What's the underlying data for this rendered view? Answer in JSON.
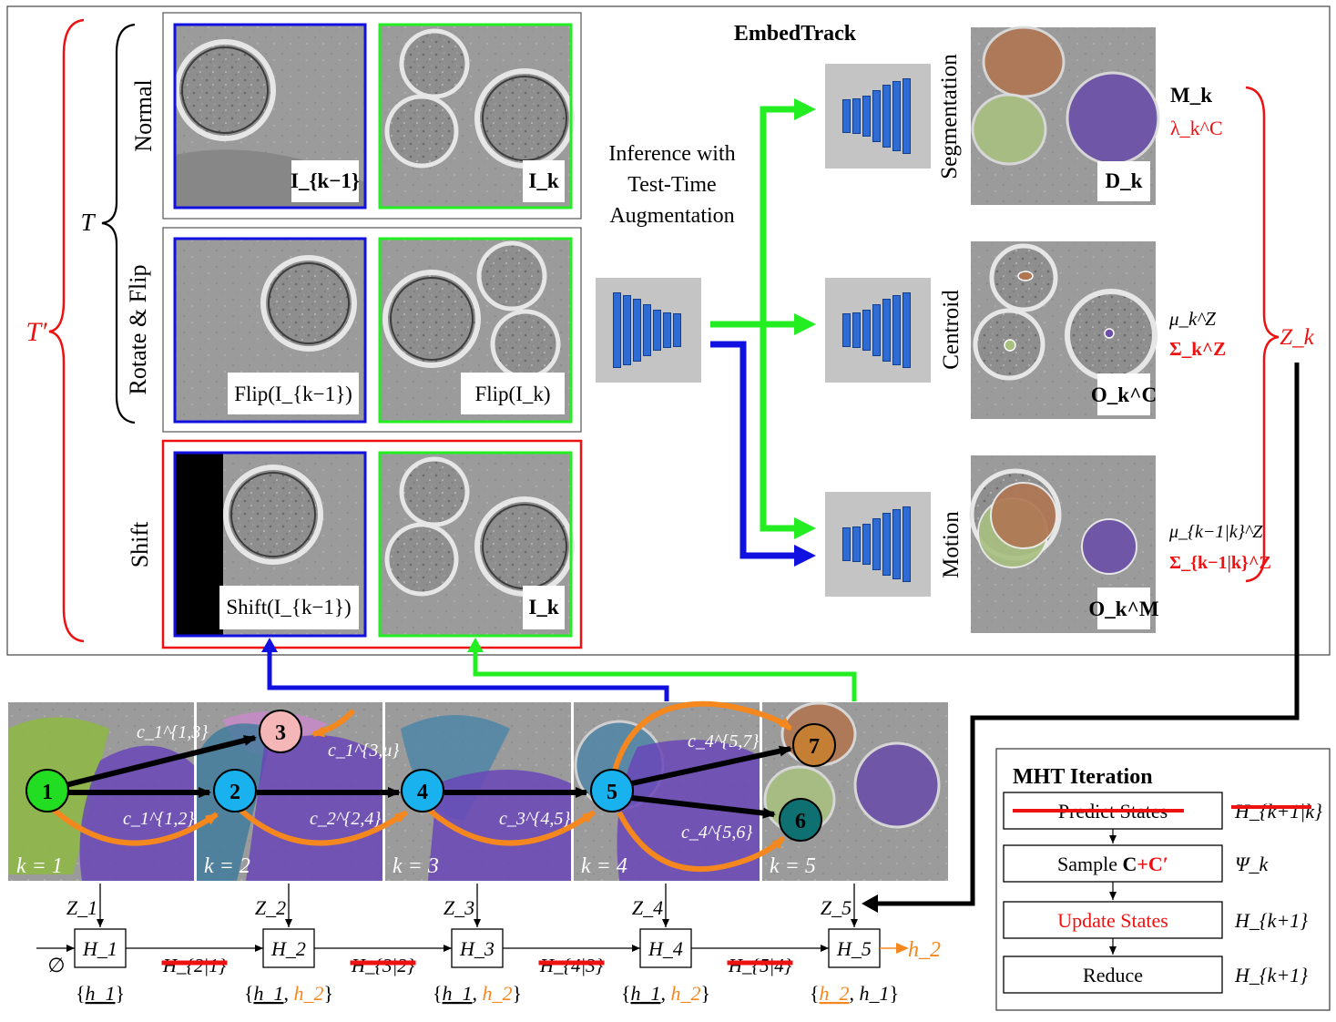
{
  "title": "EmbedTrack",
  "groups": {
    "normal": "Normal",
    "rotate_flip": "Rotate & Flip",
    "shift": "Shift",
    "tau": "T",
    "tau_prime": "T′"
  },
  "panels": {
    "normal_prev": "I_{k−1}",
    "normal_cur": "I_k",
    "flip_prev": "Flip(I_{k−1})",
    "flip_cur": "Flip(I_k)",
    "shift_prev": "Shift(I_{k−1})",
    "shift_cur": "I_k"
  },
  "inference": {
    "line1": "Inference with",
    "line2": "Test-Time",
    "line3": "Augmentation"
  },
  "heads": {
    "segmentation": "Segmentation",
    "centroid": "Centroid",
    "motion": "Motion"
  },
  "outputs": {
    "seg_img": "D_k",
    "cent_img": "O_k^C",
    "mot_img": "O_k^M",
    "seg_m": "M_k",
    "seg_lambda": "λ_k^C",
    "cent_mu": "μ_k^Z",
    "cent_sigma": "Σ_k^Z",
    "mot_mu": "μ_{k−1|k}^Z",
    "mot_sigma": "Σ_{k−1|k}^Z",
    "z_k": "Z_k"
  },
  "timeline": {
    "frames": [
      "k = 1",
      "k = 2",
      "k = 3",
      "k = 4",
      "k = 5"
    ],
    "nodes": [
      "1",
      "2",
      "3",
      "4",
      "5",
      "6",
      "7"
    ],
    "costs": [
      "c_1^{1,3}",
      "c_1^{1,2}",
      "c_1^{3,u}",
      "c_2^{2,4}",
      "c_3^{4,5}",
      "c_4^{5,7}",
      "c_4^{5,6}"
    ],
    "z": [
      "Z_1",
      "Z_2",
      "Z_3",
      "Z_4",
      "Z_5"
    ],
    "h": [
      "H_1",
      "H_2",
      "H_3",
      "H_4",
      "H_5"
    ],
    "h_pred": [
      "H_{2|1}",
      "H_{3|2}",
      "H_{4|3}",
      "H_{5|4}"
    ],
    "empty": "∅",
    "h2_out": "h_2",
    "sets": [
      [
        "h_1"
      ],
      [
        "h_1",
        "h_2"
      ],
      [
        "h_1",
        "h_2"
      ],
      [
        "h_1",
        "h_2"
      ],
      [
        "h_2",
        "h_1"
      ]
    ]
  },
  "mht": {
    "title": "MHT Iteration",
    "steps": [
      {
        "label": "Predict States",
        "symbol": "H_{k+1|k}"
      },
      {
        "label": "Sample C+C′",
        "symbol": "Ψ_k"
      },
      {
        "label": "Update States",
        "symbol": "H_{k+1}"
      },
      {
        "label": "Reduce",
        "symbol": "H_{k+1}"
      }
    ]
  },
  "colors": {
    "blue": "#1010e0",
    "green": "#22ee22",
    "red": "#ee1111",
    "orange": "#f5871f",
    "node_green": "#22dd22",
    "node_cyan": "#19b2ee",
    "node_pink": "#f4b6b6",
    "node_brown": "#c47f35",
    "node_teal": "#0e7070"
  }
}
